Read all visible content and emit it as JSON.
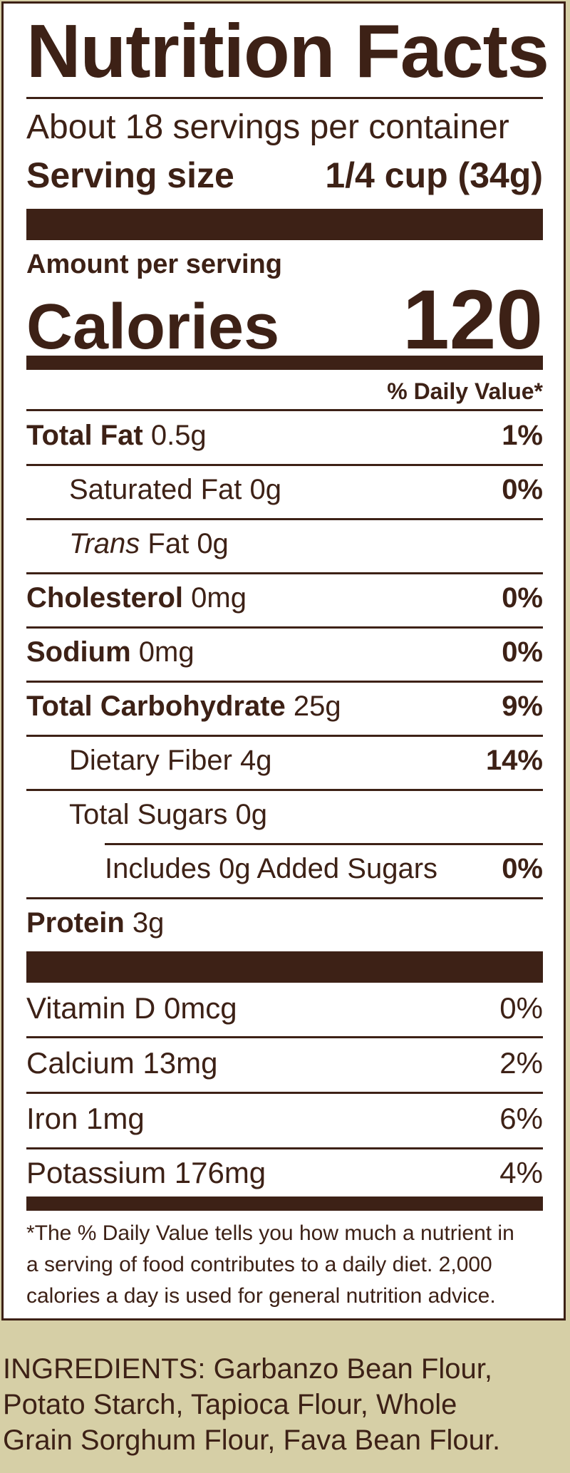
{
  "label": {
    "title": "Nutrition Facts",
    "servings_per_container": "About 18 servings per container",
    "serving_size_label": "Serving size",
    "serving_size_value": "1/4 cup (34g)",
    "amount_per_serving": "Amount per serving",
    "calories_label": "Calories",
    "calories_value": "120",
    "daily_value_header": "% Daily Value*",
    "nutrients": [
      {
        "name": "Total Fat",
        "amount": "0.5g",
        "dv": "1%"
      },
      {
        "name": "Saturated Fat 0g",
        "amount": "",
        "dv": "0%"
      },
      {
        "name": "Trans",
        "amount": "Fat 0g",
        "dv": ""
      },
      {
        "name": "Cholesterol",
        "amount": "0mg",
        "dv": "0%"
      },
      {
        "name": "Sodium",
        "amount": "0mg",
        "dv": "0%"
      },
      {
        "name": "Total Carbohydrate",
        "amount": "25g",
        "dv": "9%"
      },
      {
        "name": "Dietary Fiber 4g",
        "amount": "",
        "dv": "14%"
      },
      {
        "name": "Total Sugars 0g",
        "amount": "",
        "dv": ""
      },
      {
        "name": "Includes 0g Added Sugars",
        "amount": "",
        "dv": "0%"
      },
      {
        "name": "Protein",
        "amount": "3g",
        "dv": ""
      }
    ],
    "vitamins": [
      {
        "name": "Vitamin D 0mcg",
        "dv": "0%"
      },
      {
        "name": "Calcium 13mg",
        "dv": "2%"
      },
      {
        "name": "Iron 1mg",
        "dv": "6%"
      },
      {
        "name": "Potassium 176mg",
        "dv": "4%"
      }
    ],
    "footnote_lines": [
      "*The % Daily Value tells you how much a nutrient in",
      "a serving of food contributes to a daily diet. 2,000",
      "calories a day is used for general nutrition advice."
    ]
  },
  "ingredients_lines": [
    "INGREDIENTS: Garbanzo Bean Flour,",
    "Potato Starch, Tapioca Flour, Whole",
    "Grain Sorghum Flour, Fava Bean Flour."
  ],
  "colors": {
    "ink": "#3d2116",
    "background": "#d6cfa6",
    "panel": "#ffffff"
  }
}
